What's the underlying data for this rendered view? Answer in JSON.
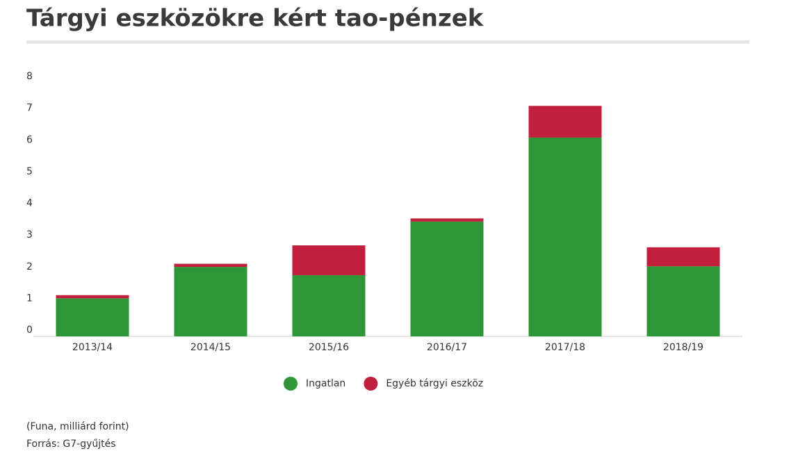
{
  "chart_data": {
    "type": "stacked_bar",
    "title": "Tárgyi eszközökre kért tao-pénzek",
    "categories": [
      "2013/14",
      "2014/15",
      "2015/16",
      "2016/17",
      "2017/18",
      "2018/19"
    ],
    "series": [
      {
        "name": "Ingatlan",
        "color": "#2e9639",
        "values": [
          1.2,
          2.19,
          1.93,
          3.62,
          6.27,
          2.21
        ]
      },
      {
        "name": "Egyéb tárgyi eszköz",
        "color": "#c0203e",
        "values": [
          0.1,
          0.1,
          0.94,
          0.1,
          1.0,
          0.6
        ]
      }
    ],
    "ylim": [
      0,
      8
    ],
    "yticks": [
      0,
      1,
      2,
      3,
      4,
      5,
      6,
      7,
      8
    ],
    "note": "(Funa, milliárd forint)",
    "source": "Forrás: G7-gyűjtés"
  }
}
